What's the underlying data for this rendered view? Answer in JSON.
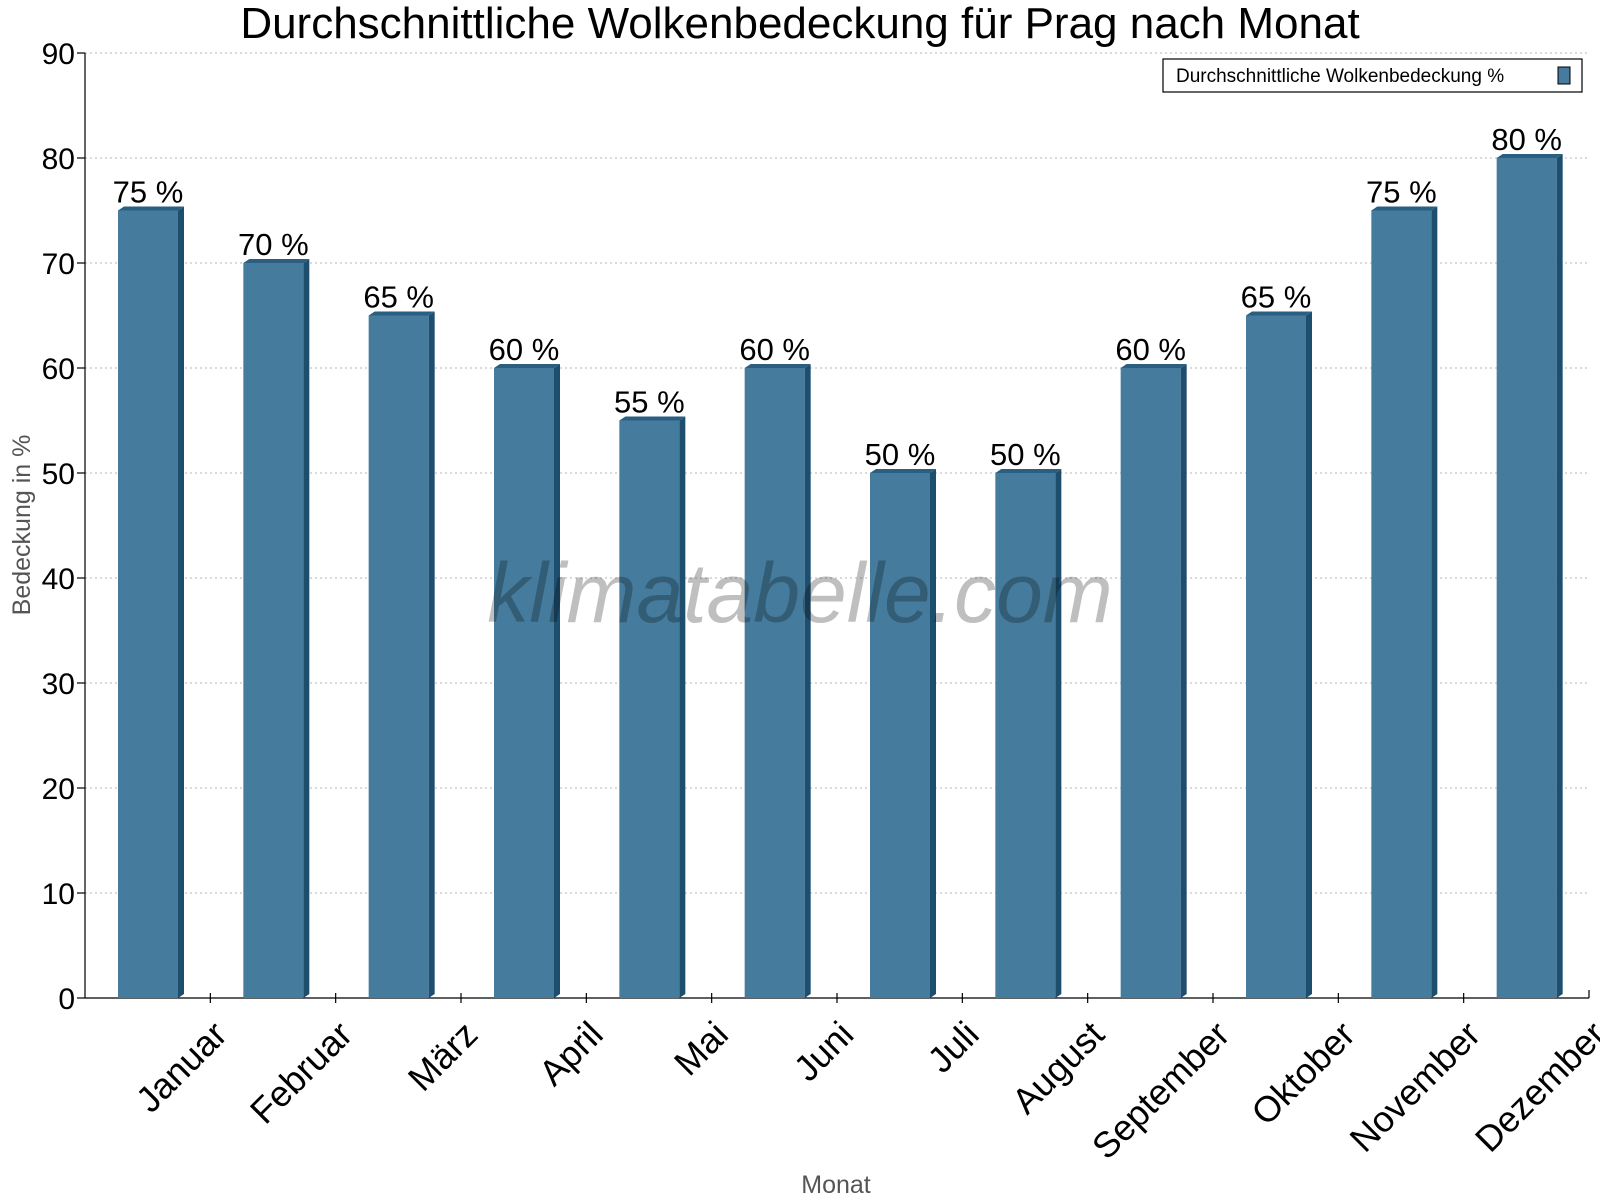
{
  "chart_data": {
    "type": "bar",
    "title": "Durchschnittliche Wolkenbedeckung für Prag nach Monat",
    "xlabel": "Monat",
    "ylabel": "Bedeckung in %",
    "categories": [
      "Januar",
      "Februar",
      "März",
      "April",
      "Mai",
      "Juni",
      "Juli",
      "August",
      "September",
      "Oktober",
      "November",
      "Dezember"
    ],
    "series": [
      {
        "name": "Durchschnittliche Wolkenbedeckung %",
        "values": [
          75,
          70,
          65,
          60,
          55,
          60,
          50,
          50,
          60,
          65,
          75,
          80
        ],
        "data_labels": [
          "75 %",
          "70 %",
          "65 %",
          "60 %",
          "55 %",
          "60 %",
          "50 %",
          "50 %",
          "60 %",
          "65 %",
          "75 %",
          "80 %"
        ]
      }
    ],
    "ylim": [
      0,
      90
    ],
    "yticks": [
      0,
      10,
      20,
      30,
      40,
      50,
      60,
      70,
      80,
      90
    ],
    "grid": true,
    "legend_position": "top-right",
    "colors": {
      "bar_front": "#457b9d",
      "bar_side": "#1d4e6e",
      "bar_top": "#2a5f82"
    },
    "watermark": "klimatabelle.com"
  }
}
